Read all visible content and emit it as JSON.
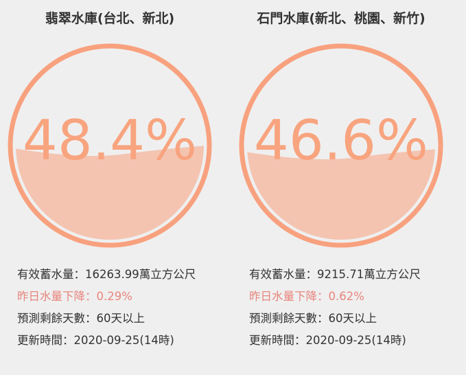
{
  "reservoirs": [
    {
      "name": "翡翠水庫(台北、新北)",
      "level": 48.4,
      "level_label": "48.4%",
      "storage": "有效蓄水量：16263.99萬立方公尺",
      "change": "昨日水量下降：0.29%",
      "days": "預測剩餘天數：60天以上",
      "updated": "更新時間：2020-09-25(14時)"
    },
    {
      "name": "石門水庫(新北、桃園、新竹)",
      "level": 46.6,
      "level_label": "46.6%",
      "storage": "有效蓄水量：9215.71萬立方公尺",
      "change": "昨日水量下降：0.62%",
      "days": "預測剩餘天數：60天以上",
      "updated": "更新時間：2020-09-25(14時)"
    }
  ]
}
